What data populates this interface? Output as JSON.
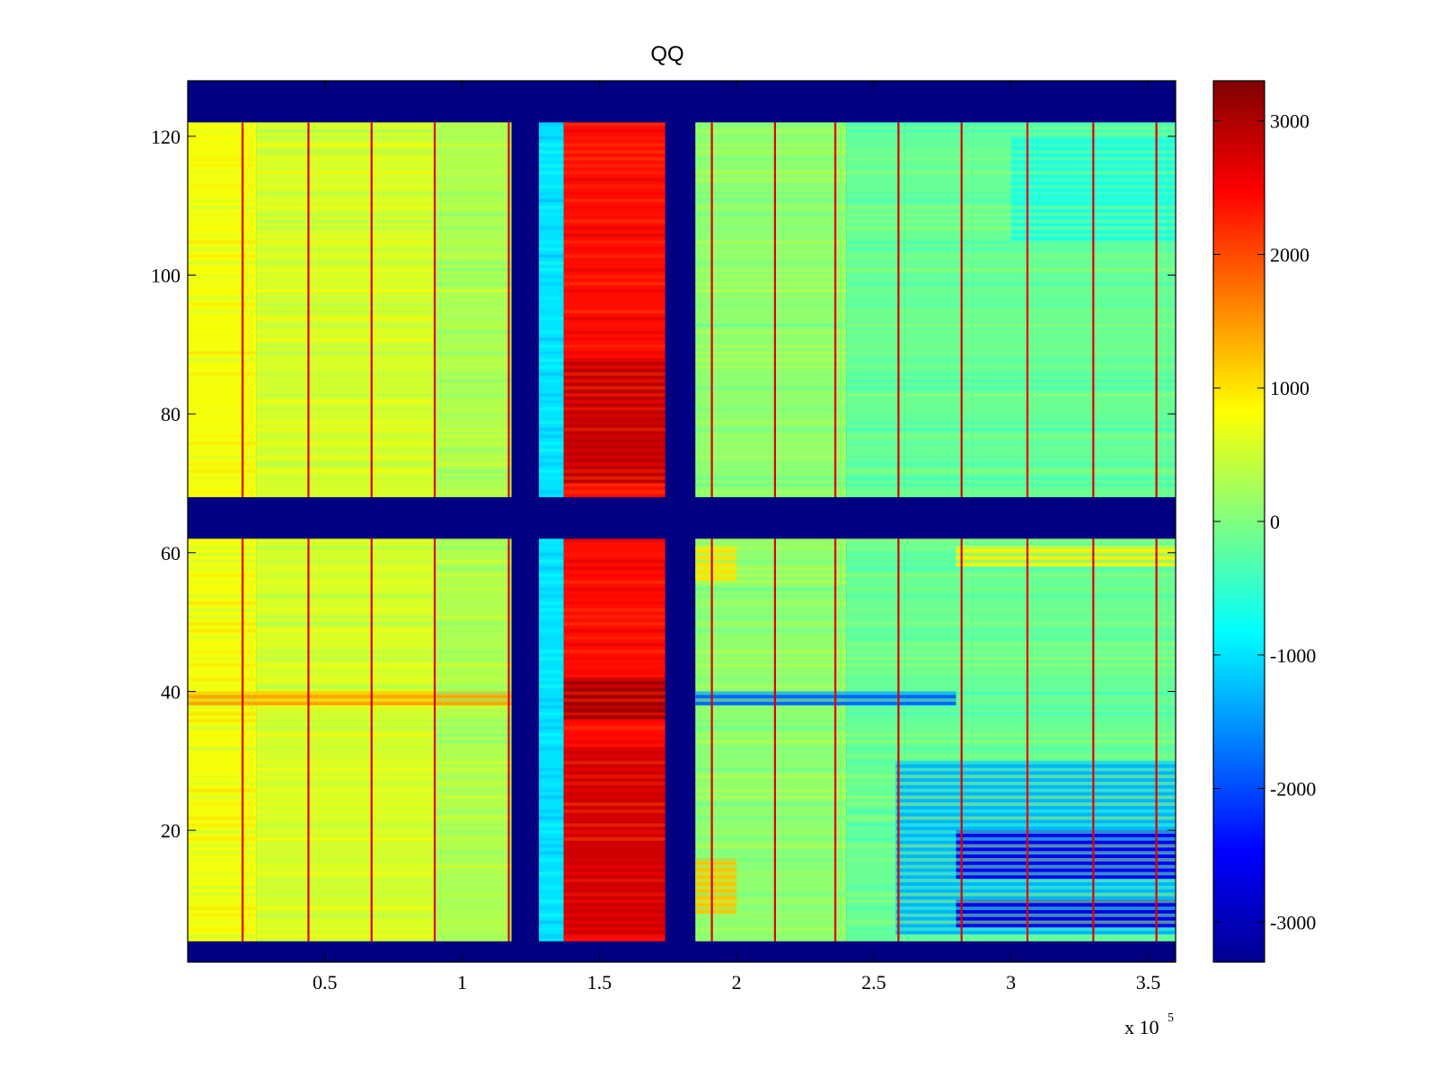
{
  "chart_data": {
    "type": "heatmap",
    "title": "QQ",
    "colormap": "jet",
    "x_exponent_label": "x 10",
    "x_exponent": "5",
    "xlim": [
      0.0,
      3.6
    ],
    "ylim": [
      1,
      128
    ],
    "x_ticks": [
      {
        "value": 0.5,
        "label": "0.5"
      },
      {
        "value": 1.0,
        "label": "1"
      },
      {
        "value": 1.5,
        "label": "1.5"
      },
      {
        "value": 2.0,
        "label": "2"
      },
      {
        "value": 2.5,
        "label": "2.5"
      },
      {
        "value": 3.0,
        "label": "3"
      },
      {
        "value": 3.5,
        "label": "3.5"
      }
    ],
    "y_ticks": [
      {
        "value": 20,
        "label": "20"
      },
      {
        "value": 40,
        "label": "40"
      },
      {
        "value": 60,
        "label": "60"
      },
      {
        "value": 80,
        "label": "80"
      },
      {
        "value": 100,
        "label": "100"
      },
      {
        "value": 120,
        "label": "120"
      }
    ],
    "colorbar": {
      "clim": [
        -3300,
        3300
      ],
      "ticks": [
        {
          "value": 3000,
          "label": "3000"
        },
        {
          "value": 2000,
          "label": "2000"
        },
        {
          "value": 1000,
          "label": "1000"
        },
        {
          "value": 0,
          "label": "0"
        },
        {
          "value": -1000,
          "label": "-1000"
        },
        {
          "value": -2000,
          "label": "-2000"
        },
        {
          "value": -3000,
          "label": "-3000"
        }
      ]
    },
    "background_value": -3300,
    "masked_rows": [
      [
        1,
        4
      ],
      [
        62,
        68
      ],
      [
        122,
        128
      ]
    ],
    "column_bands": [
      {
        "x_range": [
          0.0,
          0.25
        ],
        "value": 750
      },
      {
        "x_range": [
          0.25,
          0.9
        ],
        "value": 550
      },
      {
        "x_range": [
          0.9,
          1.18
        ],
        "value": 300
      },
      {
        "x_range": [
          1.18,
          1.28
        ],
        "value": -3300
      },
      {
        "x_range": [
          1.28,
          1.37
        ],
        "value": -1000
      },
      {
        "x_range": [
          1.37,
          1.74
        ],
        "value": 2400
      },
      {
        "x_range": [
          1.74,
          1.85
        ],
        "value": -3300
      },
      {
        "x_range": [
          1.85,
          2.4
        ],
        "value": 100
      },
      {
        "x_range": [
          2.4,
          3.6
        ],
        "value": -150
      }
    ],
    "thin_vertical_lines_x": [
      0.2,
      0.44,
      0.67,
      0.9,
      1.17,
      1.91,
      2.14,
      2.36,
      2.59,
      2.82,
      3.06,
      3.3,
      3.53
    ],
    "thin_line_value": 2700,
    "anomalies": [
      {
        "x_range": [
          1.37,
          1.74
        ],
        "y_range": [
          70,
          88
        ],
        "value": 2900
      },
      {
        "x_range": [
          1.37,
          1.74
        ],
        "y_range": [
          36,
          42
        ],
        "value": 3100
      },
      {
        "x_range": [
          1.37,
          1.74
        ],
        "y_range": [
          5,
          32
        ],
        "value": 2800
      },
      {
        "x_range": [
          0.0,
          1.18
        ],
        "y_range": [
          38,
          40
        ],
        "value": 1400
      },
      {
        "x_range": [
          1.85,
          2.8
        ],
        "y_range": [
          38,
          40
        ],
        "value": -1800
      },
      {
        "x_range": [
          2.58,
          3.6
        ],
        "y_range": [
          5,
          30
        ],
        "value": -1300
      },
      {
        "x_range": [
          2.8,
          3.6
        ],
        "y_range": [
          6,
          10
        ],
        "value": -2600
      },
      {
        "x_range": [
          2.8,
          3.6
        ],
        "y_range": [
          13,
          20
        ],
        "value": -2500
      },
      {
        "x_range": [
          1.85,
          2.0
        ],
        "y_range": [
          8,
          16
        ],
        "value": 1200
      },
      {
        "x_range": [
          1.85,
          2.0
        ],
        "y_range": [
          56,
          61
        ],
        "value": 1000
      },
      {
        "x_range": [
          2.8,
          3.6
        ],
        "y_range": [
          58,
          61
        ],
        "value": 900
      },
      {
        "x_range": [
          3.0,
          3.6
        ],
        "y_range": [
          105,
          120
        ],
        "value": -650
      }
    ]
  }
}
